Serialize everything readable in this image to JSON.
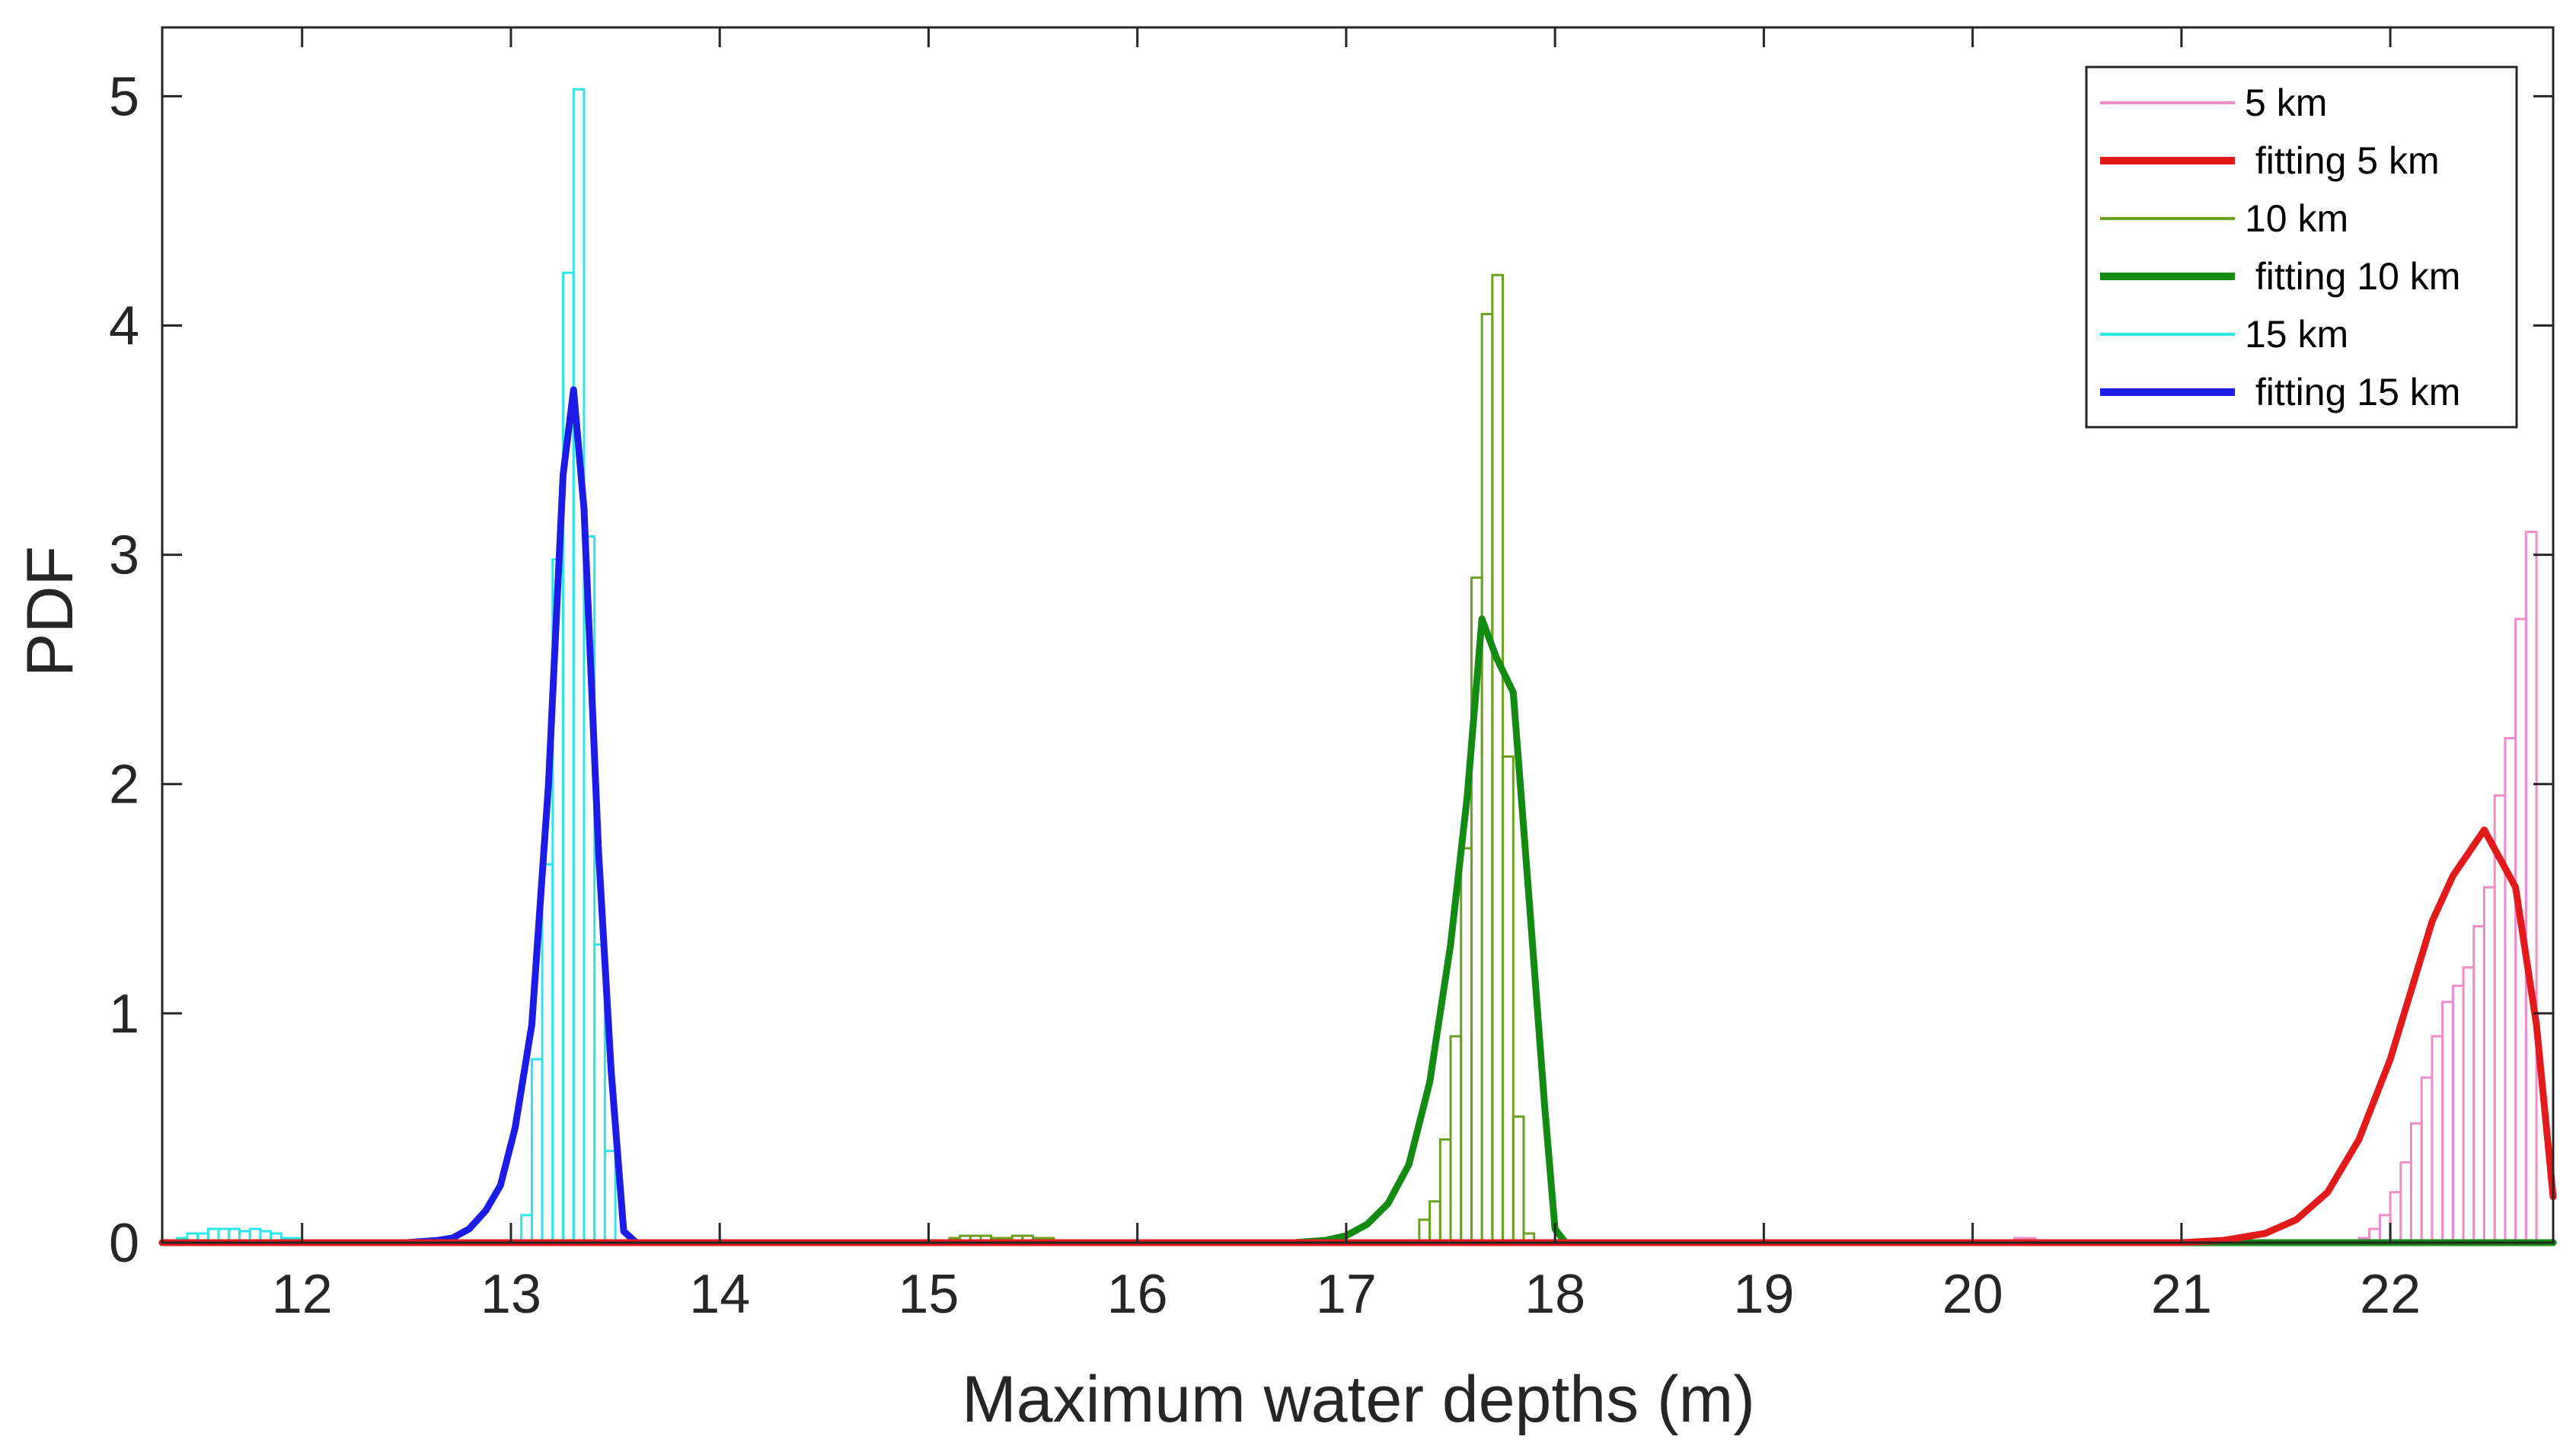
{
  "chart_data": {
    "type": "histogram",
    "xlabel": "Maximum water depths (m)",
    "ylabel": "PDF",
    "xlim": [
      11.33,
      22.78
    ],
    "ylim": [
      0,
      5.3
    ],
    "xticks": [
      12,
      13,
      14,
      15,
      16,
      17,
      18,
      19,
      20,
      21,
      22
    ],
    "yticks": [
      0,
      1,
      2,
      3,
      4,
      5
    ],
    "legend_position": "top-right",
    "colors": {
      "axis": "#262626",
      "hist_5km": "#f08cc6",
      "fit_5km": "#e31a1c",
      "hist_10km": "#6aa121",
      "fit_10km": "#138b13",
      "hist_15km": "#2ee6e8",
      "fit_15km": "#1c1ce6"
    },
    "legend": [
      {
        "label": "5 km",
        "type": "thin",
        "color": "#f08cc6"
      },
      {
        "label": " fitting 5 km",
        "type": "thick",
        "color": "#e31a1c"
      },
      {
        "label": "10 km",
        "type": "thin",
        "color": "#6aa121"
      },
      {
        "label": " fitting 10 km",
        "type": "thick",
        "color": "#138b13"
      },
      {
        "label": "15 km",
        "type": "thin",
        "color": "#2ee6e8"
      },
      {
        "label": " fitting 15 km",
        "type": "thick",
        "color": "#1c1ce6"
      }
    ],
    "histograms": [
      {
        "name": "15 km",
        "color": "#2ee6e8",
        "bin_edges": [
          11.4,
          11.45,
          11.5,
          11.55,
          11.6,
          11.65,
          11.7,
          11.75,
          11.8,
          11.85,
          11.9,
          11.95,
          12.0,
          12.05,
          12.1,
          12.15,
          12.2,
          12.25,
          12.3,
          12.35,
          12.4,
          12.45,
          12.5,
          12.55,
          12.6,
          12.65,
          12.7,
          12.75,
          12.8,
          12.85,
          12.9,
          12.95,
          13.0,
          13.05,
          13.1,
          13.15,
          13.2,
          13.25,
          13.3,
          13.35,
          13.4,
          13.45,
          13.5,
          13.55
        ],
        "values": [
          0.02,
          0.04,
          0.04,
          0.06,
          0.06,
          0.06,
          0.05,
          0.06,
          0.05,
          0.04,
          0.02,
          0.02,
          0,
          0,
          0,
          0,
          0,
          0,
          0,
          0,
          0,
          0,
          0,
          0,
          0,
          0,
          0,
          0,
          0,
          0,
          0,
          0,
          0,
          0.12,
          0.8,
          1.65,
          2.98,
          4.23,
          5.03,
          3.08,
          1.3,
          0.4,
          0
        ]
      },
      {
        "name": "10 km",
        "color": "#6aa121",
        "bin_edges": [
          15.0,
          15.05,
          15.1,
          15.15,
          15.2,
          15.25,
          15.3,
          15.35,
          15.4,
          15.45,
          15.5,
          15.55,
          15.6,
          15.65,
          15.7,
          15.75,
          15.8,
          15.85,
          15.9,
          15.95,
          16.0,
          16.05,
          16.1,
          16.15,
          16.2,
          16.25,
          16.3,
          16.35,
          16.4,
          16.45,
          16.5,
          16.55,
          16.6,
          16.65,
          16.7,
          16.75,
          16.8,
          16.85,
          16.9,
          16.95,
          17.0,
          17.05,
          17.1,
          17.15,
          17.2,
          17.25,
          17.3,
          17.35,
          17.4,
          17.45,
          17.5,
          17.55,
          17.6,
          17.65,
          17.7,
          17.75,
          17.8,
          17.85,
          17.9,
          17.95
        ],
        "values": [
          0.01,
          0.01,
          0.02,
          0.03,
          0.03,
          0.03,
          0.02,
          0.02,
          0.03,
          0.03,
          0.02,
          0.02,
          0.01,
          0.01,
          0,
          0,
          0,
          0,
          0,
          0,
          0,
          0,
          0,
          0,
          0,
          0,
          0,
          0,
          0,
          0,
          0,
          0,
          0,
          0,
          0,
          0,
          0,
          0,
          0,
          0,
          0,
          0,
          0,
          0,
          0,
          0,
          0,
          0.1,
          0.18,
          0.45,
          0.9,
          1.72,
          2.9,
          4.05,
          4.22,
          2.12,
          0.55,
          0.04,
          0
        ]
      },
      {
        "name": "5 km",
        "color": "#f08cc6",
        "bin_edges": [
          19.7,
          19.75,
          19.8,
          19.85,
          19.9,
          19.95,
          20.0,
          20.05,
          20.1,
          20.15,
          20.2,
          20.25,
          20.3,
          20.35,
          20.4,
          20.45,
          20.5,
          20.55,
          20.6,
          20.65,
          20.7,
          20.75,
          20.8,
          20.85,
          20.9,
          20.95,
          21.0,
          21.05,
          21.1,
          21.15,
          21.2,
          21.25,
          21.3,
          21.35,
          21.4,
          21.45,
          21.5,
          21.55,
          21.6,
          21.65,
          21.7,
          21.75,
          21.8,
          21.85,
          21.9,
          21.95,
          22.0,
          22.05,
          22.1,
          22.15,
          22.2,
          22.25,
          22.3,
          22.35,
          22.4,
          22.45,
          22.5,
          22.55,
          22.6,
          22.65,
          22.7
        ],
        "values": [
          0.01,
          0.01,
          0.01,
          0.01,
          0.01,
          0.01,
          0.01,
          0.01,
          0.01,
          0.01,
          0.02,
          0.02,
          0.01,
          0.01,
          0.01,
          0,
          0,
          0,
          0,
          0,
          0,
          0,
          0,
          0,
          0,
          0,
          0,
          0,
          0,
          0,
          0,
          0,
          0,
          0,
          0,
          0,
          0,
          0,
          0,
          0,
          0,
          0,
          0,
          0.02,
          0.06,
          0.12,
          0.22,
          0.35,
          0.52,
          0.72,
          0.9,
          1.05,
          1.12,
          1.2,
          1.38,
          1.55,
          1.95,
          2.2,
          2.72,
          3.1,
          0
        ]
      }
    ],
    "series": [
      {
        "name": " fitting 15 km",
        "color": "#1c1ce6",
        "x": [
          11.33,
          12.5,
          12.65,
          12.72,
          12.8,
          12.88,
          12.95,
          13.02,
          13.1,
          13.18,
          13.25,
          13.3,
          13.35,
          13.42,
          13.48,
          13.54,
          13.6,
          22.78
        ],
        "y": [
          0,
          0,
          0.01,
          0.02,
          0.06,
          0.14,
          0.25,
          0.5,
          0.95,
          2.0,
          3.35,
          3.72,
          3.2,
          1.7,
          0.75,
          0.05,
          0,
          0
        ]
      },
      {
        "name": " fitting 10 km",
        "color": "#138b13",
        "x": [
          11.33,
          16.75,
          16.9,
          17.0,
          17.1,
          17.2,
          17.3,
          17.4,
          17.5,
          17.58,
          17.65,
          17.72,
          17.8,
          17.88,
          17.95,
          18.0,
          18.05,
          22.78
        ],
        "y": [
          0,
          0,
          0.01,
          0.03,
          0.08,
          0.17,
          0.34,
          0.7,
          1.3,
          1.95,
          2.72,
          2.55,
          2.4,
          1.45,
          0.6,
          0.06,
          0,
          0
        ]
      },
      {
        "name": " fitting 5 km",
        "color": "#e31a1c",
        "x": [
          11.33,
          21.0,
          21.2,
          21.4,
          21.55,
          21.7,
          21.85,
          22.0,
          22.1,
          22.2,
          22.3,
          22.45,
          22.6,
          22.7,
          22.78
        ],
        "y": [
          0,
          0,
          0.01,
          0.04,
          0.1,
          0.22,
          0.45,
          0.8,
          1.1,
          1.4,
          1.6,
          1.8,
          1.55,
          0.95,
          0.2
        ]
      }
    ]
  }
}
